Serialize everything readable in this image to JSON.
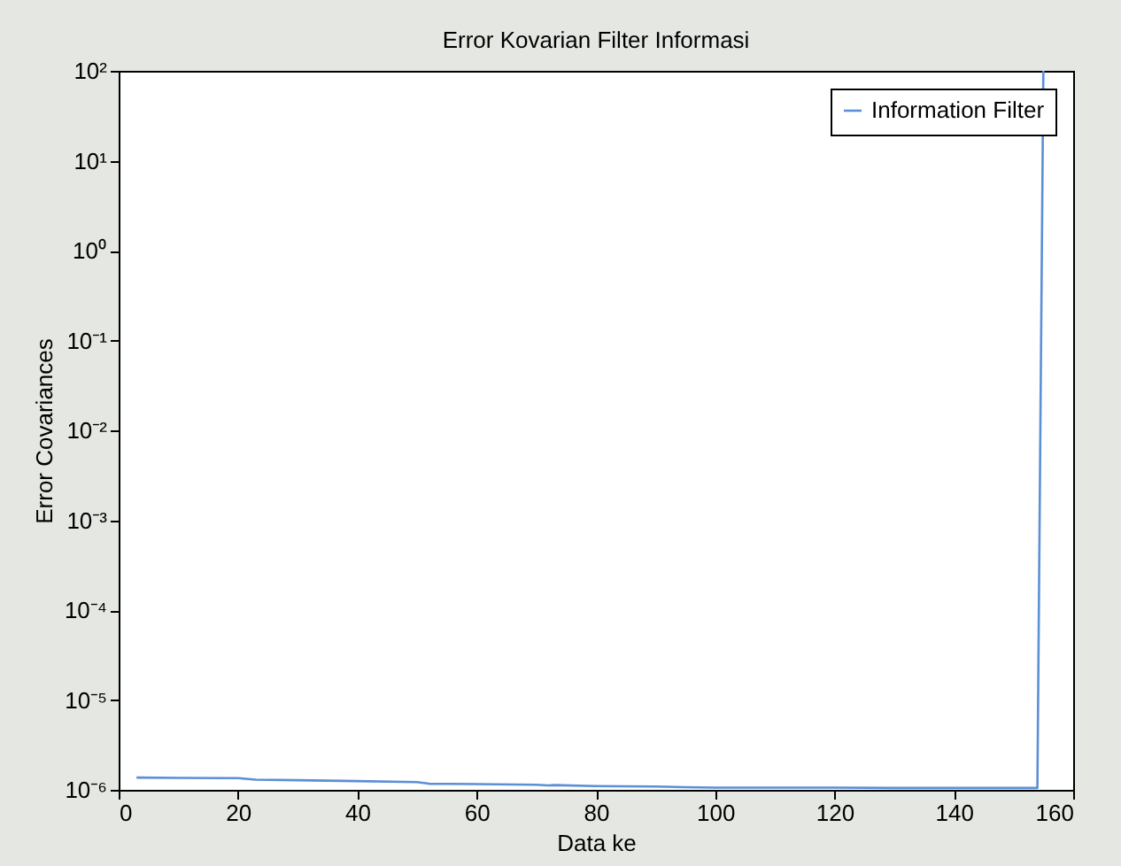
{
  "chart_data": {
    "type": "line",
    "title": "Error Kovarian Filter Informasi",
    "xlabel": "Data ke",
    "ylabel": "Error Covariances",
    "x": [
      3,
      10,
      20,
      23,
      30,
      40,
      50,
      52,
      60,
      70,
      72,
      73,
      80,
      90,
      95,
      100,
      110,
      120,
      130,
      140,
      150,
      154,
      155
    ],
    "series": [
      {
        "name": "Information Filter",
        "color": "#5b8fd6",
        "values": [
          1.37e-06,
          1.36e-06,
          1.35e-06,
          1.3e-06,
          1.28e-06,
          1.25e-06,
          1.22e-06,
          1.17e-06,
          1.16e-06,
          1.14e-06,
          1.12e-06,
          1.13e-06,
          1.1e-06,
          1.09e-06,
          1.07e-06,
          1.06e-06,
          1.06e-06,
          1.06e-06,
          1.05e-06,
          1.05e-06,
          1.05e-06,
          1.05e-06,
          100
        ]
      }
    ],
    "xlim": [
      0,
      160
    ],
    "xticks": [
      0,
      20,
      40,
      60,
      80,
      100,
      120,
      140,
      160
    ],
    "ylim": [
      1e-06,
      100
    ],
    "yticks": [
      {
        "value": 1e-06,
        "label": "10⁻⁶"
      },
      {
        "value": 1e-05,
        "label": "10⁻⁵"
      },
      {
        "value": 0.0001,
        "label": "10⁻⁴"
      },
      {
        "value": 0.001,
        "label": "10⁻³"
      },
      {
        "value": 0.01,
        "label": "10⁻²"
      },
      {
        "value": 0.1,
        "label": "10⁻¹"
      },
      {
        "value": 1,
        "label": "10⁰"
      },
      {
        "value": 10,
        "label": "10¹"
      },
      {
        "value": 100,
        "label": "10²"
      }
    ],
    "log": "y",
    "grid": false,
    "legend": "top right",
    "marker": "none",
    "line_style": "solid"
  }
}
